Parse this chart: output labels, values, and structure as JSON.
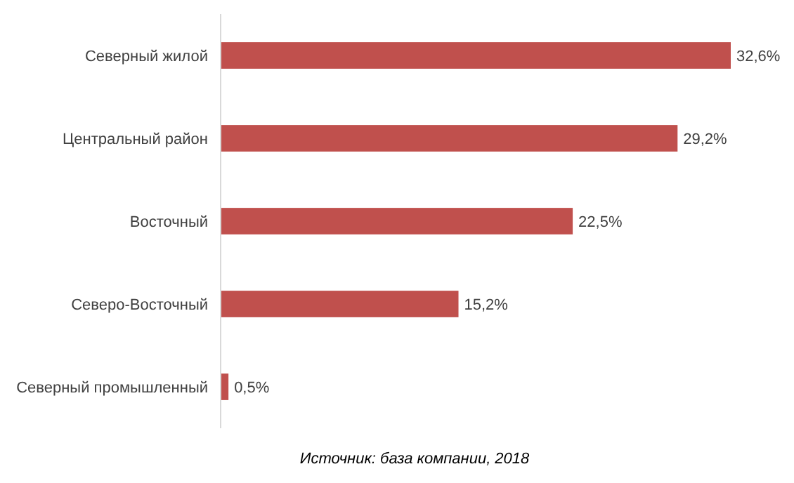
{
  "chart_data": {
    "type": "bar",
    "orientation": "horizontal",
    "categories": [
      "Северный жилой",
      "Центральный район",
      "Восточный",
      "Северо-Восточный",
      "Северный промышленный"
    ],
    "values": [
      32.6,
      29.2,
      22.5,
      15.2,
      0.5
    ],
    "value_labels": [
      "32,6%",
      "29,2%",
      "22,5%",
      "15,2%",
      "0,5%"
    ],
    "color": "#c0504d",
    "annotations": [
      "Источник: база компании, 2018"
    ]
  }
}
